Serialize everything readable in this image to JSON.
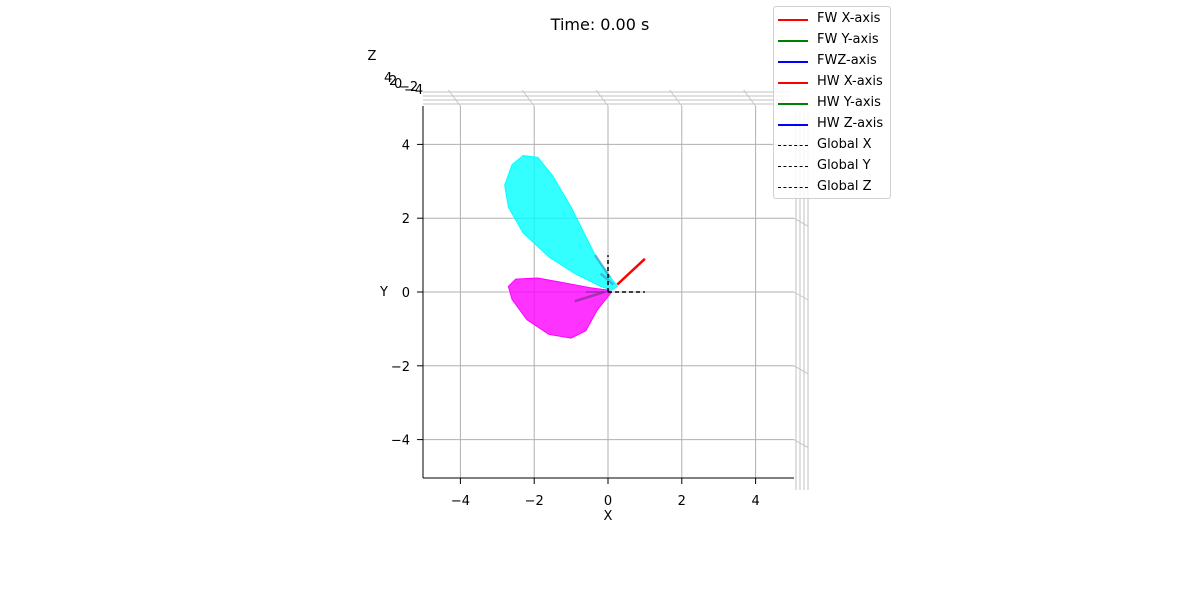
{
  "chart_data": {
    "type": "3d-line",
    "title": "Time: 0.00 s",
    "xlabel": "X",
    "ylabel": "Y",
    "zlabel": "Z",
    "view": "top-down (looking along Z axis)",
    "xlim": [
      -5,
      5
    ],
    "ylim": [
      -5,
      5
    ],
    "x_ticks": [
      "−4",
      "−2",
      "0",
      "2",
      "4"
    ],
    "y_ticks": [
      "−4",
      "−2",
      "0",
      "2",
      "4"
    ],
    "z_ticks_visible": [
      "4",
      "2",
      "0",
      "−2",
      "−4"
    ],
    "grid": true,
    "legend_position": "top-right",
    "series": [
      {
        "name": "FW X-axis",
        "color": "#ff0000",
        "style": "solid",
        "x": [
          0.25,
          1.0
        ],
        "y": [
          0.2,
          0.9
        ]
      },
      {
        "name": "FW Y-axis",
        "color": "#008000",
        "style": "solid"
      },
      {
        "name": "FWZ-axis",
        "color": "#0000ff",
        "style": "solid"
      },
      {
        "name": "HW X-axis",
        "color": "#ff0000",
        "style": "solid"
      },
      {
        "name": "HW Y-axis",
        "color": "#008000",
        "style": "solid"
      },
      {
        "name": "HW Z-axis",
        "color": "#0000ff",
        "style": "solid"
      },
      {
        "name": "Global X",
        "color": "#000000",
        "style": "dashed",
        "x": [
          0,
          1
        ],
        "y": [
          0,
          0
        ]
      },
      {
        "name": "Global Y",
        "color": "#000000",
        "style": "dashed",
        "x": [
          0,
          0
        ],
        "y": [
          0,
          1
        ]
      },
      {
        "name": "Global Z",
        "color": "#000000",
        "style": "dashed",
        "x": [
          0,
          0
        ],
        "y": [
          0,
          0
        ]
      }
    ],
    "surfaces": [
      {
        "name": "forewing",
        "color": "#00ffff",
        "outline": [
          [
            0.25,
            0.15
          ],
          [
            -0.3,
            0.9
          ],
          [
            -1.0,
            2.3
          ],
          [
            -1.5,
            3.15
          ],
          [
            -1.9,
            3.65
          ],
          [
            -2.3,
            3.7
          ],
          [
            -2.6,
            3.45
          ],
          [
            -2.8,
            2.9
          ],
          [
            -2.7,
            2.3
          ],
          [
            -2.3,
            1.6
          ],
          [
            -1.6,
            0.95
          ],
          [
            -0.9,
            0.5
          ],
          [
            -0.2,
            0.15
          ],
          [
            0.1,
            0.05
          ]
        ]
      },
      {
        "name": "hindwing",
        "color": "#ff00ff",
        "outline": [
          [
            0.1,
            0.0
          ],
          [
            -0.3,
            -0.5
          ],
          [
            -0.6,
            -1.05
          ],
          [
            -1.0,
            -1.25
          ],
          [
            -1.6,
            -1.15
          ],
          [
            -2.2,
            -0.75
          ],
          [
            -2.6,
            -0.2
          ],
          [
            -2.7,
            0.15
          ],
          [
            -2.5,
            0.35
          ],
          [
            -1.9,
            0.38
          ],
          [
            -1.2,
            0.25
          ],
          [
            -0.5,
            0.12
          ],
          [
            0.0,
            0.05
          ]
        ]
      }
    ]
  }
}
